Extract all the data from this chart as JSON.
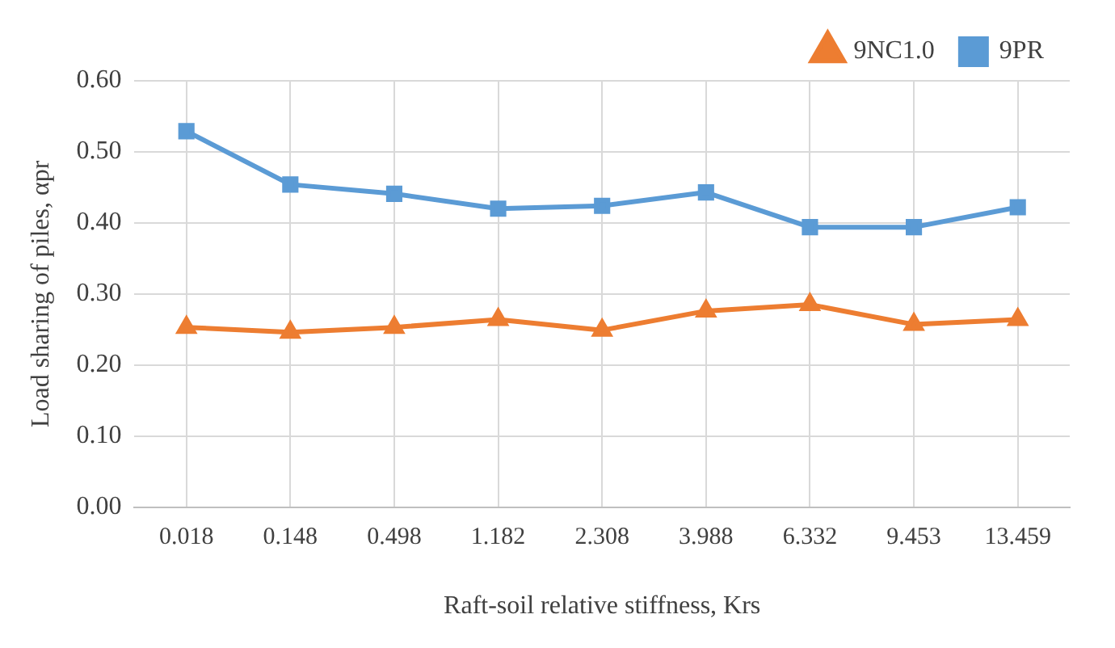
{
  "chart_data": {
    "type": "line",
    "xlabel": "Raft-soil relative stiffness, Krs",
    "ylabel": "Load sharing of piles, αpr",
    "categories": [
      "0.018",
      "0.148",
      "0.498",
      "1.182",
      "2.308",
      "3.988",
      "6.332",
      "9.453",
      "13.459"
    ],
    "series": [
      {
        "name": "9NC1.0",
        "color": "#ed7d31",
        "marker": "triangle",
        "values": [
          0.253,
          0.246,
          0.253,
          0.264,
          0.249,
          0.276,
          0.285,
          0.257,
          0.264
        ]
      },
      {
        "name": "9PR",
        "color": "#5b9bd5",
        "marker": "square",
        "values": [
          0.529,
          0.454,
          0.441,
          0.42,
          0.424,
          0.443,
          0.394,
          0.394,
          0.422
        ]
      }
    ],
    "ylim": [
      0,
      0.6
    ],
    "yticks": [
      {
        "value": 0,
        "label": "0.00"
      },
      {
        "value": 0.1,
        "label": "0.10"
      },
      {
        "value": 0.2,
        "label": "0.20"
      },
      {
        "value": 0.3,
        "label": "0.30"
      },
      {
        "value": 0.4,
        "label": "0.40"
      },
      {
        "value": 0.5,
        "label": "0.50"
      },
      {
        "value": 0.6,
        "label": "0.60"
      }
    ],
    "grid": true,
    "legend": "top right",
    "line_style": "solid"
  }
}
